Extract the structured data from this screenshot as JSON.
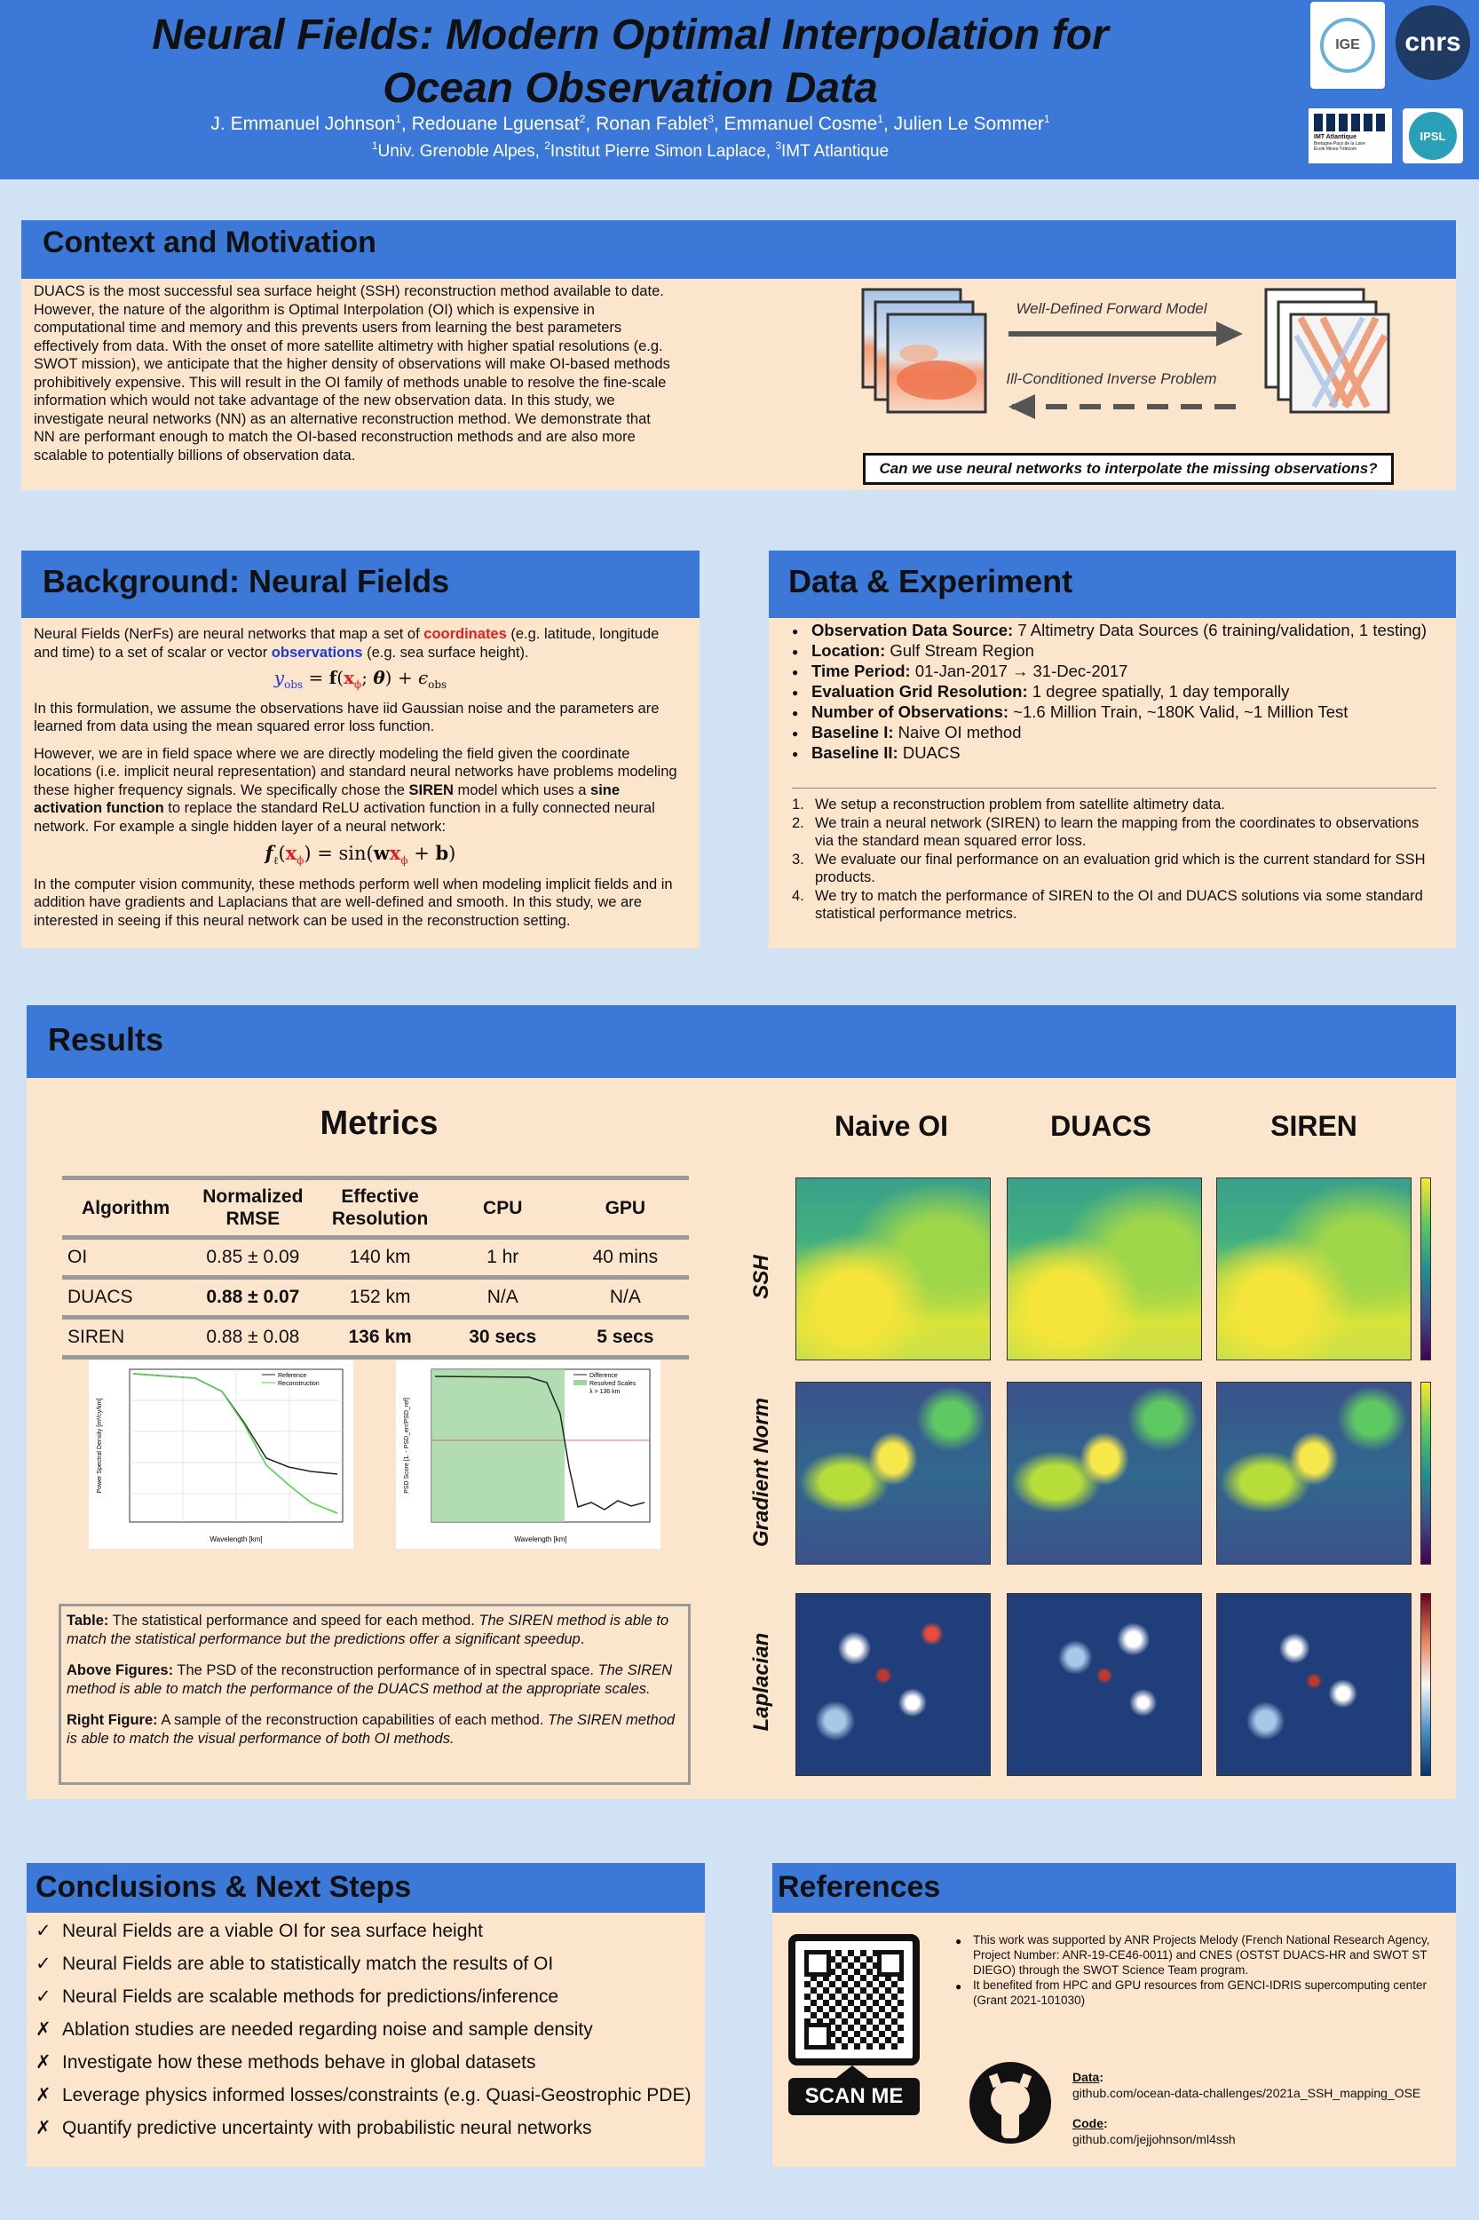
{
  "header": {
    "title_line1": "Neural Fields: Modern Optimal Interpolation for",
    "title_line2": "Ocean Observation Data",
    "authors": [
      {
        "name": "J. Emmanuel Johnson",
        "aff": "1"
      },
      {
        "name": "Redouane Lguensat",
        "aff": "2"
      },
      {
        "name": "Ronan Fablet",
        "aff": "3"
      },
      {
        "name": "Emmanuel Cosme",
        "aff": "1"
      },
      {
        "name": "Julien Le Sommer",
        "aff": "1"
      }
    ],
    "affiliations": [
      {
        "num": "1",
        "name": "Univ. Grenoble Alpes, "
      },
      {
        "num": "2",
        "name": "Institut Pierre Simon Laplace, "
      },
      {
        "num": "3",
        "name": "IMT Atlantique"
      }
    ],
    "logos": {
      "ige": "IGE",
      "cnrs": "cnrs",
      "imt": "IMT Atlantique",
      "imt_sub1": "Bretagne-Pays de la Loire",
      "imt_sub2": "École Mines-Télécom",
      "ipsl": "IPSL"
    }
  },
  "context": {
    "heading": "Context and Motivation",
    "text": "DUACS is the most successful sea surface height (SSH) reconstruction method available to date. However, the nature of the algorithm is Optimal Interpolation (OI) which is expensive in computational time and memory and this prevents users from learning the best parameters effectively from data. With the onset of more satellite altimetry with higher spatial resolutions (e.g. SWOT mission), we anticipate that the higher density of observations will make OI-based methods prohibitively expensive. This will result in the OI family of methods unable to resolve the fine-scale information which would not take advantage of the new observation data. In this study, we investigate neural networks (NN) as an alternative reconstruction method. We demonstrate that NN are performant enough to match the OI-based reconstruction methods and are also more scalable to potentially billions of observation data.",
    "forward_label": "Well-Defined Forward Model",
    "inverse_label": "Ill-Conditioned Inverse Problem",
    "question": "Can we use neural networks to interpolate the missing observations?"
  },
  "background": {
    "heading": "Background: Neural Fields",
    "p1_a": "Neural Fields (NerFs) are neural networks that map a set of ",
    "p1_coord": "coordinates",
    "p1_b": " (e.g. latitude, longitude and time) to a set of scalar or vector ",
    "p1_obs": "observations",
    "p1_c": " (e.g. sea surface height).",
    "p2": "In this formulation, we assume the observations have iid Gaussian noise and the parameters are learned from data using the mean squared error loss function.",
    "p3_a": "However, we are in field space where we are directly modeling the field given the coordinate locations (i.e. implicit neural representation) and standard neural networks have problems modeling these higher frequency signals. We specifically chose the ",
    "p3_siren": "SIREN",
    "p3_b": " model which uses a ",
    "p3_sine": "sine activation function",
    "p3_c": " to replace the standard ReLU activation function in a fully connected neural network. For example a single hidden layer of a neural network:",
    "p4": "In the computer vision community, these methods perform well when modeling implicit fields and in addition have gradients and Laplacians that are well-defined and smooth. In this study, we are interested in seeing if this neural network can be used in the reconstruction setting."
  },
  "data": {
    "heading": "Data & Experiment",
    "items": [
      {
        "label": "Observation Data Source:",
        "value": " 7 Altimetry Data Sources (6 training/validation, 1 testing)"
      },
      {
        "label": "Location:",
        "value": " Gulf Stream Region"
      },
      {
        "label": "Time Period:",
        "value": " 01-Jan-2017 → 31-Dec-2017"
      },
      {
        "label": "Evaluation Grid Resolution:",
        "value": " 1 degree spatially, 1 day temporally"
      },
      {
        "label": "Number of Observations:",
        "value": " ~1.6 Million Train, ~180K Valid, ~1 Million Test"
      },
      {
        "label": "Baseline I:",
        "value": " Naive OI method"
      },
      {
        "label": "Baseline II:",
        "value": " DUACS"
      }
    ],
    "steps": [
      "We setup a reconstruction problem from satellite altimetry data.",
      "We train a neural network (SIREN) to learn the mapping from the coordinates to observations via the standard mean squared error loss.",
      "We evaluate our final performance on an evaluation grid which is the current standard for SSH products.",
      "We try to match the performance of SIREN to the OI and DUACS solutions via some standard statistical performance metrics."
    ]
  },
  "results": {
    "heading": "Results",
    "metrics_title": "Metrics",
    "table": {
      "headers": [
        "Algorithm",
        "Normalized RMSE",
        "Effective Resolution",
        "CPU",
        "GPU"
      ],
      "rows": [
        [
          "OI",
          "0.85 ± 0.09",
          "140 km",
          "1 hr",
          "40 mins"
        ],
        [
          "DUACS",
          "0.88 ± 0.07",
          "152 km",
          "N/A",
          "N/A"
        ],
        [
          "SIREN",
          "0.88 ± 0.08",
          "136 km",
          "30 secs",
          "5 secs"
        ]
      ]
    },
    "psd_plot": {
      "ylabel": "Power Spectral Density [m²/cy/km]",
      "xlabel": "Wavelength [km]",
      "legend": [
        "Reference",
        "Reconstruction"
      ]
    },
    "score_plot": {
      "ylabel": "PSD Score [1. - PSD_err/PSD_ref]",
      "xlabel": "Wavelength [km]",
      "legend": [
        "Difference",
        "Resolved Scales",
        "λ > 136 km"
      ]
    },
    "columns": [
      "Naive OI",
      "DUACS",
      "SIREN"
    ],
    "rows": [
      "SSH",
      "Gradient Norm",
      "Laplacian"
    ],
    "caption": {
      "table_label": "Table:",
      "table_text": " The statistical performance and speed for each method. ",
      "table_emph": "The SIREN method is able to match the statistical performance but the predictions offer a significant speedup",
      "above_label": "Above Figures:",
      "above_text": " The PSD of the reconstruction performance of in spectral space. ",
      "above_emph": "The SIREN method is able to match the performance of the DUACS method at the appropriate scales.",
      "right_label": "Right Figure:",
      "right_text": " A sample of the reconstruction capabilities of each method. ",
      "right_emph": "The SIREN method is able to match the visual performance of both OI methods."
    }
  },
  "conclusions": {
    "heading": "Conclusions & Next Steps",
    "items": [
      {
        "mark": "✓",
        "text": "Neural Fields are a viable OI for sea surface height"
      },
      {
        "mark": "✓",
        "text": "Neural Fields are able to statistically  match the results of OI"
      },
      {
        "mark": "✓",
        "text": "Neural Fields are scalable methods for predictions/inference"
      },
      {
        "mark": "✗",
        "text": "Ablation studies are needed regarding noise and sample density"
      },
      {
        "mark": "✗",
        "text": "Investigate how these methods behave in global datasets"
      },
      {
        "mark": "✗",
        "text": "Leverage physics informed losses/constraints (e.g. Quasi-Geostrophic PDE)"
      },
      {
        "mark": "✗",
        "text": "Quantify predictive uncertainty with probabilistic neural networks"
      }
    ]
  },
  "references": {
    "heading": "References",
    "scan": "SCAN ME",
    "funding": [
      "This work was supported by ANR Projects Melody (French National Research Agency, Project Number: ANR-19-CE46-0011) and CNES (OSTST DUACS-HR and SWOT ST DIEGO) through the SWOT Science Team program.",
      "It benefited from HPC and GPU resources from GENCI-IDRIS supercomputing center (Grant 2021-101030)"
    ],
    "data_label": "Data",
    "data_url": "github.com/ocean-data-challenges/2021a_SSH_mapping_OSE",
    "code_label": "Code",
    "code_url": "github.com/jejjohnson/ml4ssh"
  }
}
